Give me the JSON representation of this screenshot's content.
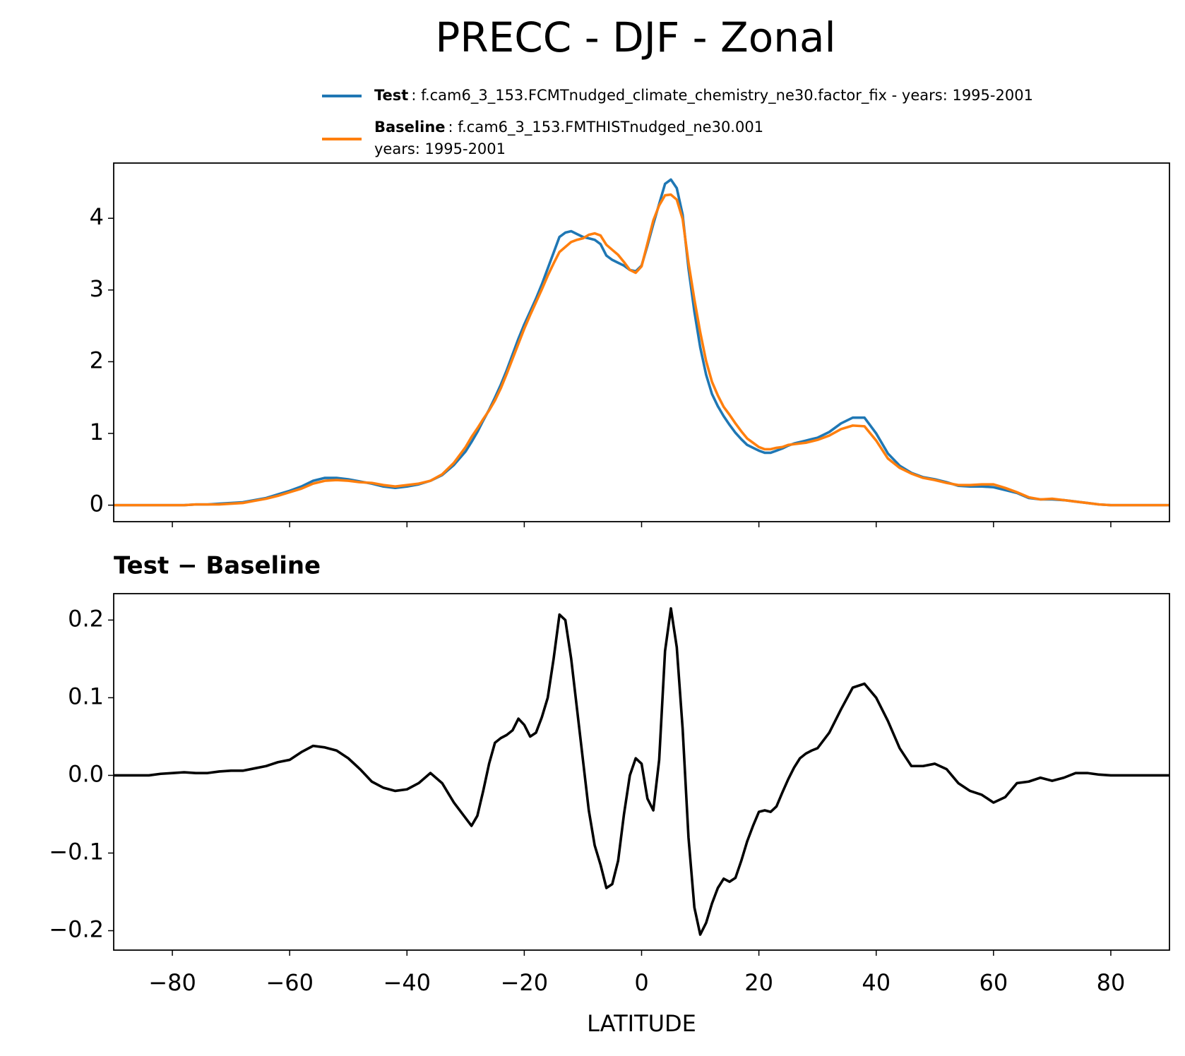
{
  "title": "PRECC - DJF - Zonal",
  "chart_data": [
    {
      "type": "line",
      "x": [
        -90,
        -88,
        -86,
        -84,
        -82,
        -80,
        -78,
        -76,
        -74,
        -72,
        -70,
        -68,
        -66,
        -64,
        -62,
        -60,
        -58,
        -56,
        -54,
        -52,
        -50,
        -48,
        -46,
        -44,
        -42,
        -40,
        -38,
        -36,
        -34,
        -32,
        -30,
        -29,
        -28,
        -27,
        -26,
        -25,
        -24,
        -23,
        -22,
        -21,
        -20,
        -19,
        -18,
        -17,
        -16,
        -15,
        -14,
        -13,
        -12,
        -11,
        -10,
        -9,
        -8,
        -7,
        -6,
        -5,
        -4,
        -3,
        -2,
        -1,
        0,
        1,
        2,
        3,
        4,
        5,
        6,
        7,
        8,
        9,
        10,
        11,
        12,
        13,
        14,
        15,
        16,
        17,
        18,
        19,
        20,
        21,
        22,
        23,
        24,
        25,
        26,
        27,
        28,
        29,
        30,
        32,
        34,
        36,
        38,
        40,
        42,
        44,
        46,
        48,
        50,
        52,
        54,
        56,
        58,
        60,
        62,
        64,
        66,
        68,
        70,
        72,
        74,
        76,
        78,
        80,
        82,
        84,
        86,
        88,
        90
      ],
      "series": [
        {
          "name": "Test",
          "label_lines": [
            ": f.cam6_3_153.FCMTnudged_climate_chemistry_ne30.factor_fix - years: 1995-2001"
          ],
          "color": "#1f77b4",
          "values": [
            0,
            0,
            0,
            0,
            0,
            0,
            0,
            0.01,
            0.01,
            0.02,
            0.03,
            0.04,
            0.07,
            0.1,
            0.15,
            0.2,
            0.26,
            0.34,
            0.38,
            0.38,
            0.36,
            0.33,
            0.3,
            0.26,
            0.24,
            0.26,
            0.29,
            0.34,
            0.42,
            0.56,
            0.75,
            0.88,
            1.02,
            1.18,
            1.33,
            1.5,
            1.68,
            1.88,
            2.1,
            2.32,
            2.52,
            2.7,
            2.88,
            3.08,
            3.3,
            3.52,
            3.74,
            3.8,
            3.82,
            3.78,
            3.74,
            3.72,
            3.7,
            3.64,
            3.48,
            3.42,
            3.38,
            3.34,
            3.28,
            3.26,
            3.34,
            3.62,
            3.92,
            4.2,
            4.48,
            4.54,
            4.42,
            4.05,
            3.3,
            2.7,
            2.2,
            1.82,
            1.55,
            1.38,
            1.24,
            1.12,
            1.01,
            0.92,
            0.84,
            0.8,
            0.76,
            0.73,
            0.73,
            0.76,
            0.79,
            0.83,
            0.86,
            0.88,
            0.9,
            0.92,
            0.94,
            1.02,
            1.14,
            1.22,
            1.22,
            1.0,
            0.72,
            0.55,
            0.45,
            0.39,
            0.36,
            0.32,
            0.27,
            0.26,
            0.26,
            0.25,
            0.21,
            0.17,
            0.1,
            0.08,
            0.08,
            0.07,
            0.05,
            0.03,
            0.01,
            0,
            0,
            0,
            0,
            0,
            0
          ]
        },
        {
          "name": "Baseline",
          "label_lines": [
            ": f.cam6_3_153.FMTHISTnudged_ne30.001",
            "years: 1995-2001"
          ],
          "color": "#ff7f0e",
          "values": [
            0,
            0,
            0,
            0,
            0,
            0,
            0,
            0.01,
            0.01,
            0.01,
            0.02,
            0.03,
            0.06,
            0.09,
            0.13,
            0.18,
            0.23,
            0.3,
            0.34,
            0.35,
            0.34,
            0.32,
            0.31,
            0.28,
            0.26,
            0.28,
            0.3,
            0.34,
            0.43,
            0.59,
            0.81,
            0.95,
            1.07,
            1.2,
            1.32,
            1.46,
            1.63,
            1.83,
            2.04,
            2.25,
            2.46,
            2.65,
            2.83,
            3.01,
            3.2,
            3.37,
            3.53,
            3.6,
            3.67,
            3.7,
            3.72,
            3.77,
            3.79,
            3.76,
            3.63,
            3.56,
            3.49,
            3.39,
            3.28,
            3.24,
            3.33,
            3.65,
            3.97,
            4.18,
            4.32,
            4.33,
            4.26,
            3.99,
            3.38,
            2.87,
            2.41,
            2.01,
            1.72,
            1.53,
            1.37,
            1.26,
            1.14,
            1.03,
            0.93,
            0.87,
            0.81,
            0.78,
            0.78,
            0.8,
            0.81,
            0.84,
            0.85,
            0.86,
            0.87,
            0.89,
            0.91,
            0.97,
            1.06,
            1.11,
            1.1,
            0.9,
            0.65,
            0.52,
            0.44,
            0.38,
            0.35,
            0.31,
            0.28,
            0.28,
            0.29,
            0.29,
            0.24,
            0.18,
            0.11,
            0.08,
            0.09,
            0.07,
            0.05,
            0.03,
            0.01,
            0,
            0,
            0,
            0,
            0,
            0
          ]
        }
      ],
      "xlim": [
        -90,
        90
      ],
      "xticks": [
        -80,
        -60,
        -40,
        -20,
        0,
        20,
        40,
        60,
        80
      ],
      "xticklabels": false,
      "ylim": [
        -0.23,
        4.77
      ],
      "yticks": [
        0,
        1,
        2,
        3,
        4
      ],
      "legend": "top"
    },
    {
      "type": "line",
      "title": "Test − Baseline",
      "xlabel": "LATITUDE",
      "color": "#000000",
      "x": [
        -90,
        -88,
        -86,
        -84,
        -82,
        -80,
        -78,
        -76,
        -74,
        -72,
        -70,
        -68,
        -66,
        -64,
        -62,
        -60,
        -58,
        -56,
        -54,
        -52,
        -50,
        -48,
        -46,
        -44,
        -42,
        -40,
        -38,
        -36,
        -34,
        -32,
        -30,
        -29,
        -28,
        -27,
        -26,
        -25,
        -24,
        -23,
        -22,
        -21,
        -20,
        -19,
        -18,
        -17,
        -16,
        -15,
        -14,
        -13,
        -12,
        -11,
        -10,
        -9,
        -8,
        -7,
        -6,
        -5,
        -4,
        -3,
        -2,
        -1,
        0,
        1,
        2,
        3,
        4,
        5,
        6,
        7,
        8,
        9,
        10,
        11,
        12,
        13,
        14,
        15,
        16,
        17,
        18,
        19,
        20,
        21,
        22,
        23,
        24,
        25,
        26,
        27,
        28,
        29,
        30,
        32,
        34,
        36,
        38,
        40,
        42,
        44,
        46,
        48,
        50,
        52,
        54,
        56,
        58,
        60,
        62,
        64,
        66,
        68,
        70,
        72,
        74,
        76,
        78,
        80,
        82,
        84,
        86,
        88,
        90
      ],
      "values": [
        0,
        0,
        0,
        0,
        0.002,
        0.003,
        0.004,
        0.003,
        0.003,
        0.005,
        0.006,
        0.006,
        0.009,
        0.012,
        0.017,
        0.02,
        0.03,
        0.038,
        0.036,
        0.032,
        0.022,
        0.008,
        -0.008,
        -0.016,
        -0.02,
        -0.018,
        -0.01,
        0.003,
        -0.01,
        -0.035,
        -0.055,
        -0.065,
        -0.052,
        -0.02,
        0.015,
        0.042,
        0.048,
        0.052,
        0.058,
        0.073,
        0.065,
        0.05,
        0.055,
        0.075,
        0.1,
        0.15,
        0.207,
        0.2,
        0.15,
        0.085,
        0.02,
        -0.045,
        -0.09,
        -0.115,
        -0.145,
        -0.14,
        -0.11,
        -0.05,
        0.0,
        0.022,
        0.015,
        -0.03,
        -0.045,
        0.02,
        0.16,
        0.215,
        0.165,
        0.06,
        -0.08,
        -0.17,
        -0.205,
        -0.19,
        -0.165,
        -0.145,
        -0.133,
        -0.137,
        -0.132,
        -0.11,
        -0.085,
        -0.065,
        -0.047,
        -0.045,
        -0.047,
        -0.04,
        -0.022,
        -0.005,
        0.01,
        0.022,
        0.028,
        0.032,
        0.035,
        0.055,
        0.085,
        0.113,
        0.118,
        0.1,
        0.07,
        0.035,
        0.012,
        0.012,
        0.015,
        0.008,
        -0.01,
        -0.02,
        -0.025,
        -0.035,
        -0.028,
        -0.01,
        -0.008,
        -0.003,
        -0.007,
        -0.003,
        0.003,
        0.003,
        0.001,
        0,
        0,
        0,
        0,
        0,
        0
      ],
      "xlim": [
        -90,
        90
      ],
      "xticks": [
        {
          "value": -80,
          "label": "−80"
        },
        {
          "value": -60,
          "label": "−60"
        },
        {
          "value": -40,
          "label": "−40"
        },
        {
          "value": -20,
          "label": "−20"
        },
        0,
        20,
        40,
        60,
        80
      ],
      "ylim": [
        -0.225,
        0.234
      ],
      "yticks": [
        {
          "value": -0.2,
          "label": "−0.2"
        },
        {
          "value": -0.1,
          "label": "−0.1"
        },
        {
          "value": 0,
          "label": "0.0"
        },
        0.1,
        0.2
      ]
    }
  ]
}
